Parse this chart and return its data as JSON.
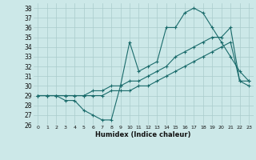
{
  "background_color": "#cce8e8",
  "grid_color": "#aacccc",
  "line_color": "#1a6b6b",
  "xlabel": "Humidex (Indice chaleur)",
  "ylim": [
    26,
    38.5
  ],
  "xlim": [
    -0.5,
    23.5
  ],
  "yticks": [
    26,
    27,
    28,
    29,
    30,
    31,
    32,
    33,
    34,
    35,
    36,
    37,
    38
  ],
  "xticks": [
    0,
    1,
    2,
    3,
    4,
    5,
    6,
    7,
    8,
    9,
    10,
    11,
    12,
    13,
    14,
    15,
    16,
    17,
    18,
    19,
    20,
    21,
    22,
    23
  ],
  "series1_x": [
    0,
    1,
    2,
    3,
    4,
    5,
    6,
    7,
    8,
    9,
    10,
    11,
    12,
    13,
    14,
    15,
    16,
    17,
    18,
    19,
    20,
    21,
    22,
    23
  ],
  "series1_y": [
    29,
    29,
    29,
    28.5,
    28.5,
    27.5,
    27.0,
    26.5,
    26.5,
    30.0,
    34.5,
    31.5,
    32.0,
    32.5,
    36.0,
    36.0,
    37.5,
    38.0,
    37.5,
    36.0,
    34.5,
    33.0,
    31.5,
    30.5
  ],
  "series2_x": [
    0,
    1,
    2,
    3,
    4,
    5,
    6,
    7,
    8,
    9,
    10,
    11,
    12,
    13,
    14,
    15,
    16,
    17,
    18,
    19,
    20,
    21,
    22,
    23
  ],
  "series2_y": [
    29,
    29,
    29,
    29,
    29,
    29,
    29.5,
    29.5,
    30.0,
    30.0,
    30.5,
    30.5,
    31.0,
    31.5,
    32.0,
    33.0,
    33.5,
    34.0,
    34.5,
    35.0,
    35.0,
    36.0,
    30.5,
    30.0
  ],
  "series3_x": [
    0,
    1,
    2,
    3,
    4,
    5,
    6,
    7,
    8,
    9,
    10,
    11,
    12,
    13,
    14,
    15,
    16,
    17,
    18,
    19,
    20,
    21,
    22,
    23
  ],
  "series3_y": [
    29,
    29,
    29,
    29,
    29,
    29,
    29,
    29,
    29.5,
    29.5,
    29.5,
    30.0,
    30.0,
    30.5,
    31.0,
    31.5,
    32.0,
    32.5,
    33.0,
    33.5,
    34.0,
    34.5,
    30.5,
    30.5
  ],
  "ytick_fontsize": 5.5,
  "xtick_fontsize": 4.5,
  "xlabel_fontsize": 6.0
}
